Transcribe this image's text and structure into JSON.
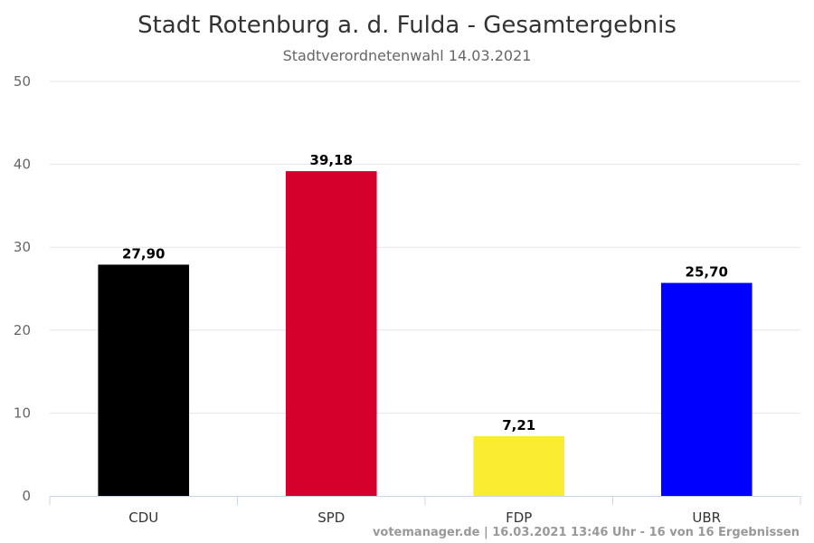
{
  "chart_data": {
    "type": "bar",
    "title": "Stadt Rotenburg a. d. Fulda - Gesamtergebnis",
    "subtitle": "Stadtverordnetenwahl 14.03.2021",
    "categories": [
      "CDU",
      "SPD",
      "FDP",
      "UBR"
    ],
    "values": [
      27.9,
      39.18,
      7.21,
      25.7
    ],
    "value_labels": [
      "27,90",
      "39,18",
      "7,21",
      "25,70"
    ],
    "colors": [
      "#000000",
      "#d5002b",
      "#f9ec31",
      "#0000ff"
    ],
    "ylim": [
      0,
      50
    ],
    "yticks": [
      "0",
      "10",
      "20",
      "30",
      "40",
      "50"
    ],
    "grid": true,
    "legend": "none",
    "credit": "votemanager.de | 16.03.2021 13:46 Uhr - 16 von 16 Ergebnissen"
  }
}
